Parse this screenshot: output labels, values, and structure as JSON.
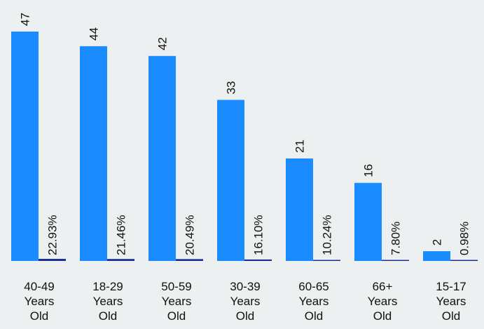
{
  "chart_data": {
    "type": "bar",
    "categories": [
      [
        "40-49",
        "Years",
        "Old"
      ],
      [
        "18-29",
        "Years",
        "Old"
      ],
      [
        "50-59",
        "Years",
        "Old"
      ],
      [
        "30-39",
        "Years",
        "Old"
      ],
      [
        "60-65",
        "Years",
        "Old"
      ],
      [
        "66+",
        "Years",
        "Old"
      ],
      [
        "15-17",
        "Years",
        "Old"
      ]
    ],
    "series": [
      {
        "values": [
          47,
          44,
          42,
          33,
          21,
          16,
          2
        ],
        "labels": [
          "47",
          "44",
          "42",
          "33",
          "21",
          "16",
          "2"
        ],
        "color": "#1a8cff"
      },
      {
        "values": [
          22.93,
          21.46,
          20.49,
          16.1,
          10.24,
          7.8,
          0.98
        ],
        "labels": [
          "22.93%",
          "21.46%",
          "20.49%",
          "16.10%",
          "10.24%",
          "7.80%",
          "0.98%"
        ],
        "color": "#1a2f8f"
      }
    ],
    "ylim": [
      0,
      47
    ],
    "grid": false,
    "legend": "none"
  }
}
